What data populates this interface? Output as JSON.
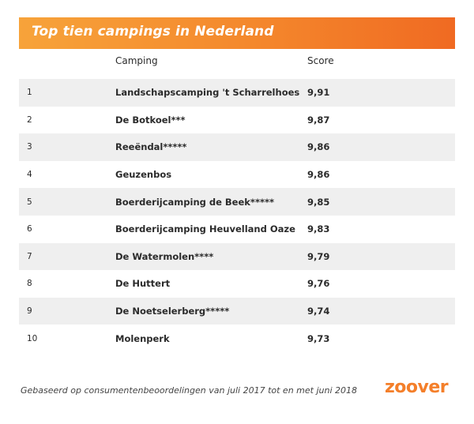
{
  "header": {
    "title": "Top tien campings in Nederland",
    "color_start": "#f7a33a",
    "color_end": "#f06a22"
  },
  "table": {
    "columns": {
      "camping": "Camping",
      "score": "Score"
    },
    "rows": [
      {
        "rank": "1",
        "name": "Landschapscamping 't Scharrelhoes",
        "score": "9,91"
      },
      {
        "rank": "2",
        "name": "De Botkoel***",
        "score": "9,87"
      },
      {
        "rank": "3",
        "name": "Reeëndal*****",
        "score": "9,86"
      },
      {
        "rank": "4",
        "name": "Geuzenbos",
        "score": "9,86"
      },
      {
        "rank": "5",
        "name": "Boerderijcamping de Beek*****",
        "score": "9,85"
      },
      {
        "rank": "6",
        "name": "Boerderijcamping Heuvelland Oaze",
        "score": "9,83"
      },
      {
        "rank": "7",
        "name": "De Watermolen****",
        "score": "9,79"
      },
      {
        "rank": "8",
        "name": "De Huttert",
        "score": "9,76"
      },
      {
        "rank": "9",
        "name": "De Noetselerberg*****",
        "score": "9,74"
      },
      {
        "rank": "10",
        "name": "Molenperk",
        "score": "9,73"
      }
    ],
    "shade_color": "#efefef"
  },
  "footer": {
    "note": "Gebaseerd op consumentenbeoordelingen van juli 2017 tot en met juni 2018",
    "logo_text": "zoover",
    "logo_color": "#f47f2a"
  }
}
